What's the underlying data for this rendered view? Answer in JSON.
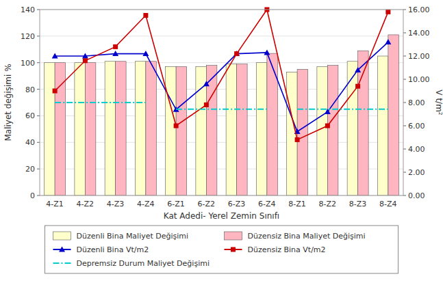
{
  "chart_data": {
    "type": "bar",
    "xlabel": "Kat Adedi- Yerel Zemin Sınıfı",
    "ylabel": "Maliyet değişimi %",
    "y2label": "V t/m²",
    "categories": [
      "4-Z1",
      "4-Z2",
      "4-Z3",
      "4-Z4",
      "6-Z1",
      "6-Z2",
      "6-Z3",
      "6-Z4",
      "8-Z1",
      "8-Z2",
      "8-Z3",
      "8-Z4"
    ],
    "ylim": [
      0,
      140
    ],
    "yticks": [
      0,
      20,
      40,
      60,
      80,
      100,
      120,
      140
    ],
    "y2lim": [
      0.0,
      16.0
    ],
    "y2ticks": [
      {
        "value": 0,
        "label": "0.00"
      },
      {
        "value": 2,
        "label": "2.00"
      },
      {
        "value": 4,
        "label": "4.00"
      },
      {
        "value": 6,
        "label": "6.00"
      },
      {
        "value": 8,
        "label": "8.00"
      },
      {
        "value": 10,
        "label": "10.00"
      },
      {
        "value": 12,
        "label": "12.00"
      },
      {
        "value": 14,
        "label": "14.00"
      },
      {
        "value": 16,
        "label": "16.00"
      }
    ],
    "grid": true,
    "legend": "bottom",
    "series": [
      {
        "name": "Düzenli Bina Maliyet Değişimi",
        "type": "bar",
        "color": "#FFFFCC",
        "values": [
          100,
          100,
          101,
          101,
          97,
          97,
          99,
          100,
          93,
          97,
          101,
          105
        ]
      },
      {
        "name": "Düzensiz Bina Maliyet Değişimi",
        "type": "bar",
        "color": "#FFB6C1",
        "values": [
          100,
          100,
          101,
          101,
          97,
          98,
          99,
          107,
          95,
          98,
          109,
          121
        ]
      },
      {
        "name": "Düzenli Bina Vt/m2",
        "type": "line",
        "axis": "y2",
        "color": "#0000CC",
        "marker": "triangle",
        "values": [
          12.0,
          12.0,
          12.2,
          12.2,
          7.4,
          9.6,
          12.2,
          12.3,
          5.5,
          7.2,
          10.8,
          13.2
        ]
      },
      {
        "name": "Düzensiz Bina Vt/m2",
        "type": "line",
        "axis": "y2",
        "color": "#CC0000",
        "marker": "square",
        "values": [
          9.0,
          11.6,
          12.8,
          15.5,
          6.0,
          7.8,
          12.2,
          16.0,
          4.8,
          6.0,
          9.4,
          15.8
        ]
      },
      {
        "name": "Depremsiz Durum Maliyet Değişimi",
        "type": "line",
        "color": "#00CCCC",
        "line_style": "dash-dot",
        "values": [
          70,
          70,
          70,
          70,
          65,
          65,
          65,
          65,
          65,
          65,
          65,
          65
        ]
      }
    ]
  }
}
